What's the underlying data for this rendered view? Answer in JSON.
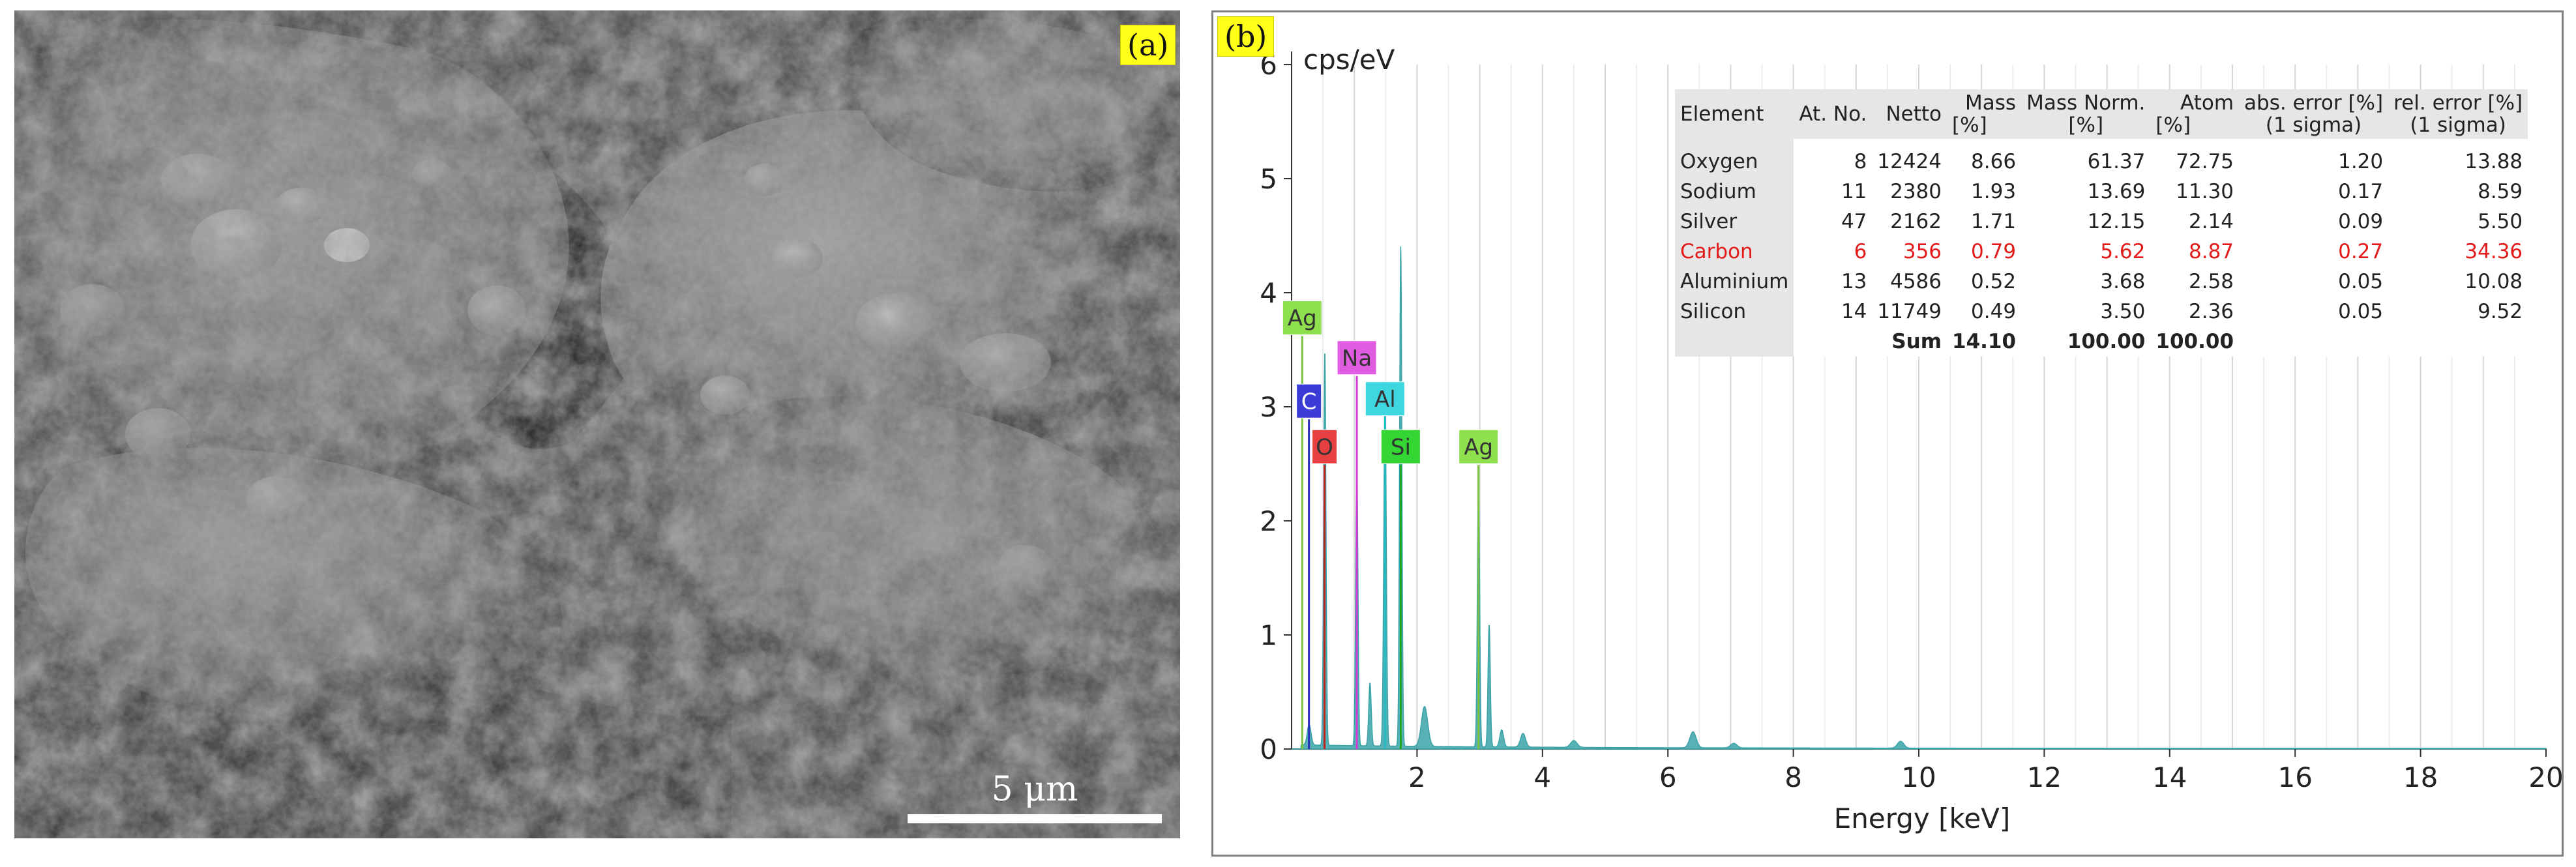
{
  "panel_a": {
    "label": "(a)",
    "scalebar_label": "5 μm"
  },
  "panel_b": {
    "label": "(b)"
  },
  "chart_data": {
    "type": "line",
    "title": "",
    "xlabel": "Energy [keV]",
    "ylabel": "cps/eV",
    "xlim": [
      0,
      20
    ],
    "ylim": [
      0,
      6
    ],
    "xticks": [
      2,
      4,
      6,
      8,
      10,
      12,
      14,
      16,
      18,
      20
    ],
    "yticks": [
      0,
      1,
      2,
      3,
      4,
      5,
      6
    ],
    "grid": "vertical",
    "spectrum": {
      "color": "#3aa3a8",
      "peaks": [
        {
          "x": 0.28,
          "y": 0.18,
          "w": 0.03
        },
        {
          "x": 0.53,
          "y": 3.45,
          "w": 0.018
        },
        {
          "x": 1.04,
          "y": 2.48,
          "w": 0.018
        },
        {
          "x": 1.25,
          "y": 0.55,
          "w": 0.02
        },
        {
          "x": 1.49,
          "y": 3.05,
          "w": 0.02
        },
        {
          "x": 1.74,
          "y": 4.38,
          "w": 0.018
        },
        {
          "x": 2.12,
          "y": 0.35,
          "w": 0.05
        },
        {
          "x": 2.98,
          "y": 2.33,
          "w": 0.018
        },
        {
          "x": 3.15,
          "y": 1.07,
          "w": 0.018
        },
        {
          "x": 3.35,
          "y": 0.15,
          "w": 0.03
        },
        {
          "x": 3.69,
          "y": 0.12,
          "w": 0.04
        },
        {
          "x": 4.5,
          "y": 0.06,
          "w": 0.05
        },
        {
          "x": 6.4,
          "y": 0.14,
          "w": 0.05
        },
        {
          "x": 7.05,
          "y": 0.04,
          "w": 0.05
        },
        {
          "x": 9.71,
          "y": 0.06,
          "w": 0.05
        }
      ]
    },
    "markers": [
      {
        "label": "Ag",
        "x": 0.17,
        "label_y": 3.78,
        "line_top": 3.6,
        "color": "#8ee04e",
        "line_color": "#7cc242"
      },
      {
        "label": "Na",
        "x": 1.04,
        "label_y": 3.43,
        "line_top": 2.48,
        "color": "#e05ce0",
        "line_color": "#d23bd2"
      },
      {
        "label": "C",
        "x": 0.277,
        "label_y": 3.05,
        "line_top": 2.9,
        "color": "#3b3bd6",
        "line_color": "#2b2bc0"
      },
      {
        "label": "Al",
        "x": 1.49,
        "label_y": 3.07,
        "line_top": 3.05,
        "color": "#3ed7e0",
        "line_color": "#25b9c2"
      },
      {
        "label": "O",
        "x": 0.525,
        "label_y": 2.65,
        "line_top": 2.5,
        "color": "#e84040",
        "line_color": "#c02020"
      },
      {
        "label": "Si",
        "x": 1.74,
        "label_y": 2.65,
        "line_top": 2.5,
        "color": "#33d633",
        "line_color": "#1fa61f"
      },
      {
        "label": "Ag",
        "x": 2.98,
        "label_y": 2.65,
        "line_top": 2.33,
        "color": "#8ee04e",
        "line_color": "#7cc242"
      }
    ]
  },
  "table": {
    "headers": [
      [
        "Element"
      ],
      [
        "At. No."
      ],
      [
        "Netto"
      ],
      [
        "Mass",
        "[%]"
      ],
      [
        "Mass Norm.",
        "[%]"
      ],
      [
        "Atom",
        "[%]"
      ],
      [
        "abs. error [%]",
        "(1 sigma)"
      ],
      [
        "rel. error [%]",
        "(1 sigma)"
      ]
    ],
    "rows": [
      {
        "element": "Oxygen",
        "at_no": "8",
        "netto": "12424",
        "mass": "8.66",
        "mass_norm": "61.37",
        "atom": "72.75",
        "abs_err": "1.20",
        "rel_err": "13.88"
      },
      {
        "element": "Sodium",
        "at_no": "11",
        "netto": "2380",
        "mass": "1.93",
        "mass_norm": "13.69",
        "atom": "11.30",
        "abs_err": "0.17",
        "rel_err": "8.59"
      },
      {
        "element": "Silver",
        "at_no": "47",
        "netto": "2162",
        "mass": "1.71",
        "mass_norm": "12.15",
        "atom": "2.14",
        "abs_err": "0.09",
        "rel_err": "5.50"
      },
      {
        "element": "Carbon",
        "at_no": "6",
        "netto": "356",
        "mass": "0.79",
        "mass_norm": "5.62",
        "atom": "8.87",
        "abs_err": "0.27",
        "rel_err": "34.36"
      },
      {
        "element": "Aluminium",
        "at_no": "13",
        "netto": "4586",
        "mass": "0.52",
        "mass_norm": "3.68",
        "atom": "2.58",
        "abs_err": "0.05",
        "rel_err": "10.08"
      },
      {
        "element": "Silicon",
        "at_no": "14",
        "netto": "11749",
        "mass": "0.49",
        "mass_norm": "3.50",
        "atom": "2.36",
        "abs_err": "0.05",
        "rel_err": "9.52"
      }
    ],
    "highlight_row_index": 3,
    "highlight_color": "#e31a1a",
    "sum": {
      "label": "Sum",
      "mass": "14.10",
      "mass_norm": "100.00",
      "atom": "100.00"
    }
  }
}
